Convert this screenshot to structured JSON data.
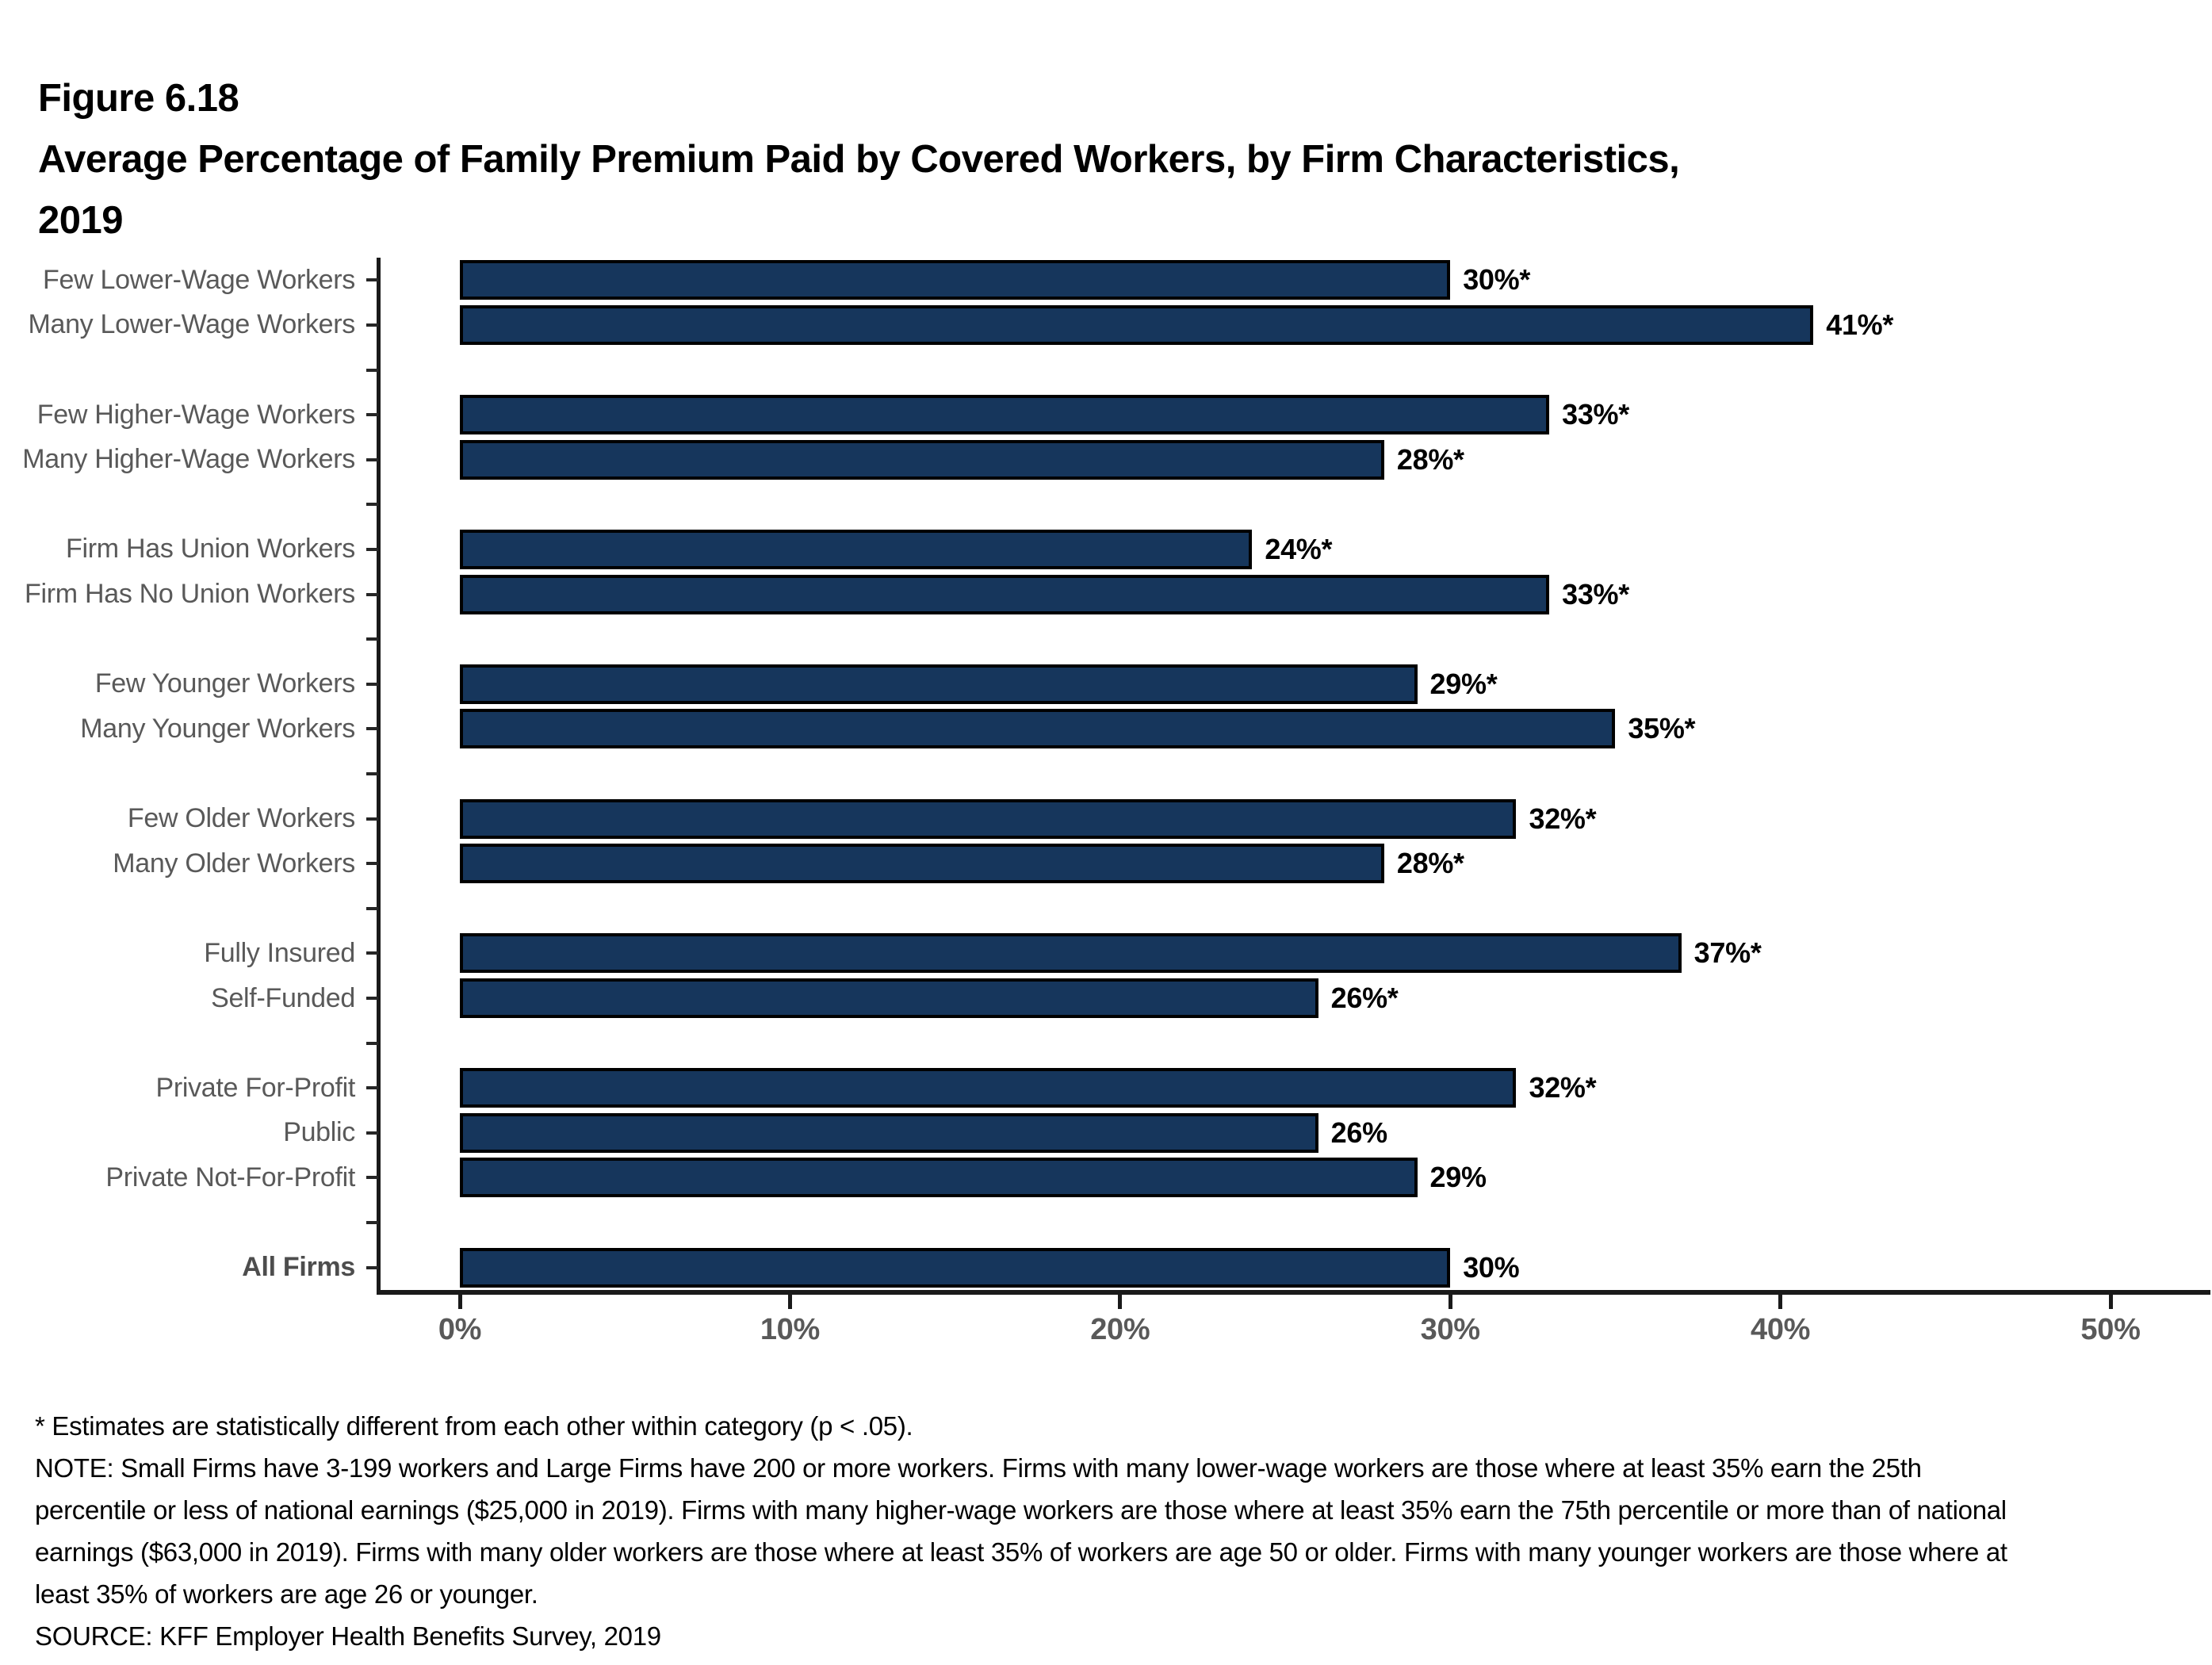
{
  "figure": {
    "number": "Figure 6.18",
    "title_lines": [
      "Average Percentage of Family Premium Paid by Covered Workers, by Firm Characteristics,",
      "2019"
    ]
  },
  "chart_data": {
    "type": "bar",
    "orientation": "horizontal",
    "title": "Average Percentage of Family Premium Paid by Covered Workers, by Firm Characteristics, 2019",
    "xlim": [
      0,
      50
    ],
    "x_tick_labels": [
      "0%",
      "10%",
      "20%",
      "30%",
      "40%",
      "50%"
    ],
    "x_tick_values": [
      0,
      10,
      20,
      30,
      40,
      50
    ],
    "grid": false,
    "bar_color": "#16365C",
    "bar_border_color": "#000000",
    "axis_color": "#1a1a1a",
    "label_color": "#595959",
    "groups": [
      {
        "rows": [
          {
            "label": "Few Lower-Wage Workers",
            "value": 30,
            "display": "30%*",
            "bold": false
          },
          {
            "label": "Many Lower-Wage Workers",
            "value": 41,
            "display": "41%*",
            "bold": false
          }
        ]
      },
      {
        "rows": [
          {
            "label": "Few Higher-Wage Workers",
            "value": 33,
            "display": "33%*",
            "bold": false
          },
          {
            "label": "Many Higher-Wage Workers",
            "value": 28,
            "display": "28%*",
            "bold": false
          }
        ]
      },
      {
        "rows": [
          {
            "label": "Firm Has Union Workers",
            "value": 24,
            "display": "24%*",
            "bold": false
          },
          {
            "label": "Firm Has No Union Workers",
            "value": 33,
            "display": "33%*",
            "bold": false
          }
        ]
      },
      {
        "rows": [
          {
            "label": "Few Younger Workers",
            "value": 29,
            "display": "29%*",
            "bold": false
          },
          {
            "label": "Many Younger Workers",
            "value": 35,
            "display": "35%*",
            "bold": false
          }
        ]
      },
      {
        "rows": [
          {
            "label": "Few Older Workers",
            "value": 32,
            "display": "32%*",
            "bold": false
          },
          {
            "label": "Many Older Workers",
            "value": 28,
            "display": "28%*",
            "bold": false
          }
        ]
      },
      {
        "rows": [
          {
            "label": "Fully Insured",
            "value": 37,
            "display": "37%*",
            "bold": false
          },
          {
            "label": "Self-Funded",
            "value": 26,
            "display": "26%*",
            "bold": false
          }
        ]
      },
      {
        "rows": [
          {
            "label": "Private For-Profit",
            "value": 32,
            "display": "32%*",
            "bold": false
          },
          {
            "label": "Public",
            "value": 26,
            "display": "26%",
            "bold": false
          },
          {
            "label": "Private Not-For-Profit",
            "value": 29,
            "display": "29%",
            "bold": false
          }
        ]
      },
      {
        "rows": [
          {
            "label": "All Firms",
            "value": 30,
            "display": "30%",
            "bold": true
          }
        ]
      }
    ]
  },
  "footnotes": {
    "asterisk": "* Estimates are statistically different from each other within category (p < .05).",
    "note": "NOTE: Small Firms have 3-199 workers and Large Firms have 200 or more workers. Firms with many lower-wage workers are those where at least 35% earn the 25th percentile or less of national earnings ($25,000 in 2019). Firms with many higher-wage workers are those where at least 35% earn the 75th percentile or more than of national earnings ($63,000 in 2019). Firms with many older workers are those where at least 35% of workers are age 50 or older. Firms with many younger workers are those where at least 35% of workers are age 26 or younger.",
    "source": "SOURCE: KFF Employer Health Benefits Survey, 2019"
  }
}
